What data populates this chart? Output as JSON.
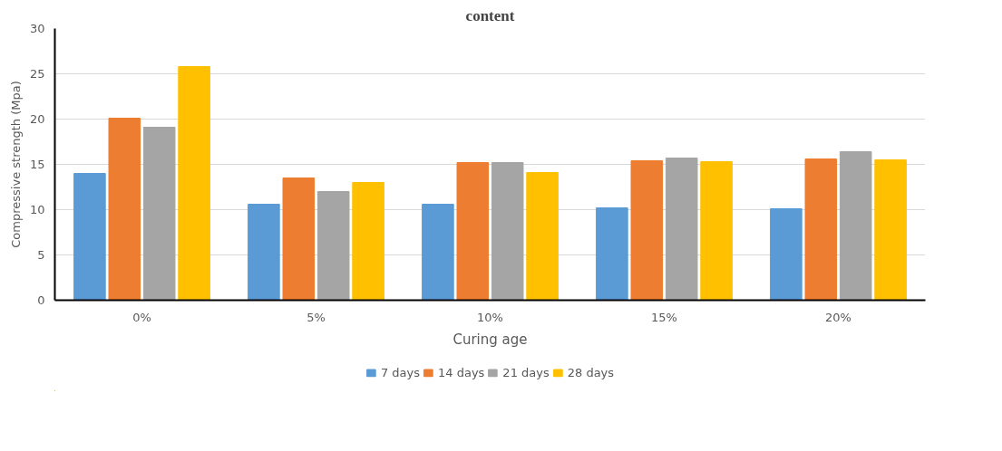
{
  "chart_data": {
    "type": "bar",
    "title": "content",
    "xlabel": "Curing age",
    "ylabel": "Compressive strength (Mpa)",
    "categories": [
      "0%",
      "5%",
      "10%",
      "15%",
      "20%"
    ],
    "series": [
      {
        "name": "7 days",
        "color": "#5b9bd5",
        "values": [
          14.0,
          10.6,
          10.6,
          10.2,
          10.1
        ]
      },
      {
        "name": "14 days",
        "color": "#ed7d31",
        "values": [
          20.1,
          13.5,
          15.2,
          15.4,
          15.6
        ]
      },
      {
        "name": "21 days",
        "color": "#a5a5a5",
        "values": [
          19.1,
          12.0,
          15.2,
          15.7,
          16.4
        ]
      },
      {
        "name": "28 days",
        "color": "#ffc000",
        "values": [
          25.8,
          13.0,
          14.1,
          15.3,
          15.5
        ]
      }
    ],
    "ylim": [
      0,
      30
    ],
    "yticks": [
      0,
      5,
      10,
      15,
      20,
      25,
      30
    ],
    "grid": "y",
    "legend": "bottom"
  }
}
